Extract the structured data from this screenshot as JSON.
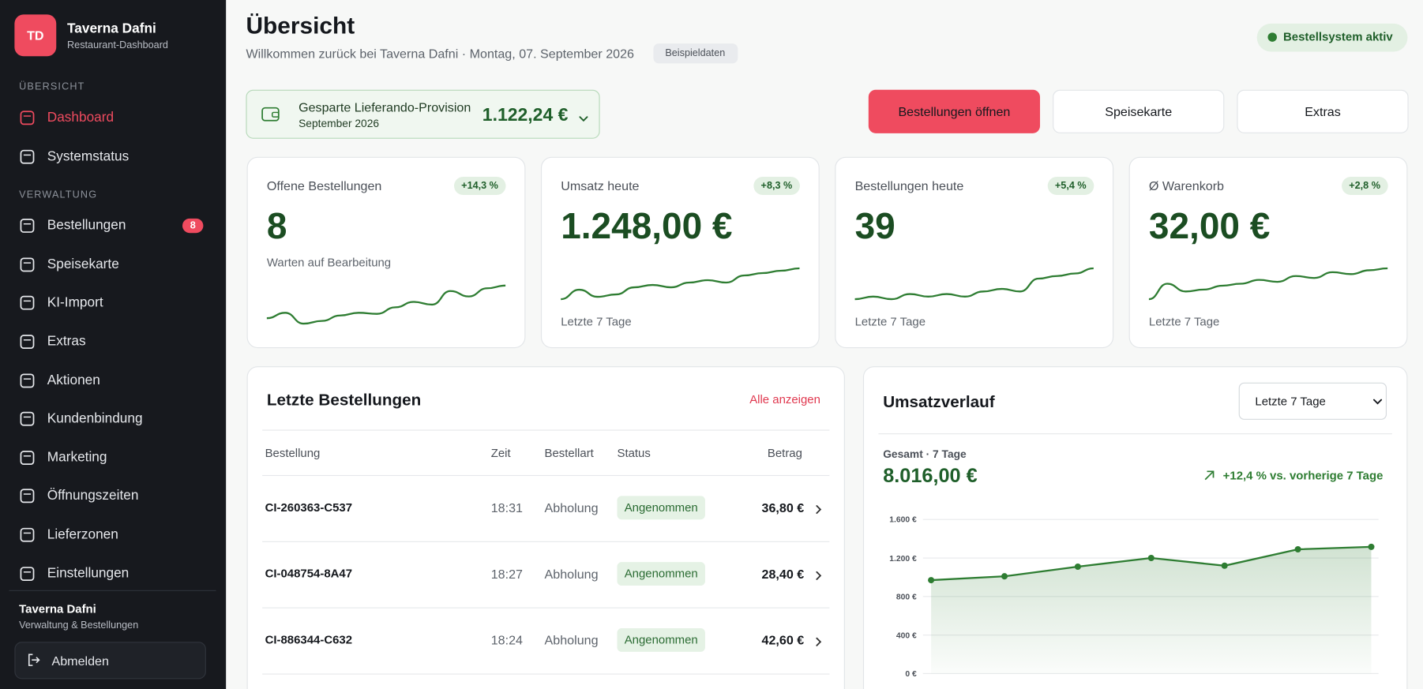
{
  "sidebar": {
    "logo": "TD",
    "name": "Taverna Dafni",
    "subtitle": "Restaurant-Dashboard",
    "sections": [
      {
        "heading": "ÜBERSICHT",
        "items": [
          {
            "label": "Dashboard"
          },
          {
            "label": "Systemstatus"
          }
        ]
      },
      {
        "heading": "VERWALTUNG",
        "items": [
          {
            "label": "Bestellungen",
            "badge": 8
          },
          {
            "label": "Speisekarte"
          },
          {
            "label": "KI-Import"
          },
          {
            "label": "Extras"
          },
          {
            "label": "Aktionen"
          },
          {
            "label": "Kundenbindung"
          },
          {
            "label": "Marketing"
          },
          {
            "label": "Öffnungszeiten"
          },
          {
            "label": "Lieferzonen"
          },
          {
            "label": "Einstellungen"
          }
        ]
      }
    ],
    "footer": {
      "name": "Taverna Dafni",
      "subtitle": "Verwaltung & Bestellungen"
    },
    "logout": "Abmelden"
  },
  "header": {
    "title": "Übersicht",
    "subtitle": "Willkommen zurück bei Taverna Dafni · Montag, 07. September 2026",
    "sample_badge": "Beispieldaten",
    "status": "Bestellsystem aktiv"
  },
  "savings": {
    "label": "Gesparte Lieferando-Provision",
    "period": "September 2026",
    "amount": "1.122,24 €"
  },
  "actions": [
    "Bestellungen öffnen",
    "Speisekarte",
    "Extras"
  ],
  "kpis": [
    {
      "title": "Offene Bestellungen",
      "change": "+14,3 %",
      "value": "8",
      "note": "Warten auf Bearbeitung",
      "sparkline": [
        2,
        3,
        1,
        1.5,
        2.5,
        3,
        2.8,
        4,
        5,
        4.5,
        7,
        6,
        7.5,
        8
      ]
    },
    {
      "title": "Umsatz heute",
      "change": "+8,3 %",
      "value": "1.248,00 €",
      "note": "Letzte 7 Tage",
      "sparkline": [
        2,
        4,
        2.5,
        3,
        4.5,
        5,
        4.5,
        5.5,
        6,
        5.5,
        7,
        7.5,
        8,
        8.5
      ]
    },
    {
      "title": "Bestellungen heute",
      "change": "+5,4 %",
      "value": "39",
      "note": "Letzte 7 Tage",
      "sparkline": [
        1,
        1.5,
        1,
        2,
        1.5,
        2,
        1.5,
        2.5,
        3,
        2.5,
        5,
        5.5,
        6,
        7
      ]
    },
    {
      "title": "Ø Warenkorb",
      "change": "+2,8 %",
      "value": "32,00 €",
      "note": "Letzte 7 Tage",
      "sparkline": [
        1,
        5,
        3,
        3.5,
        4.5,
        5,
        6,
        5.5,
        7,
        6.5,
        8,
        7.5,
        8.5,
        9
      ]
    }
  ],
  "orders": {
    "title": "Letzte Bestellungen",
    "link": "Alle anzeigen",
    "columns": [
      "Bestellung",
      "Zeit",
      "Bestellart",
      "Status",
      "Betrag"
    ],
    "rows": [
      [
        "CI-260363-C537",
        "18:31",
        "Abholung",
        "Angenommen",
        "36,80 €"
      ],
      [
        "CI-048754-8A47",
        "18:27",
        "Abholung",
        "Angenommen",
        "28,40 €"
      ],
      [
        "CI-886344-C632",
        "18:24",
        "Abholung",
        "Angenommen",
        "42,60 €"
      ]
    ]
  },
  "revenue_chart": {
    "type": "line",
    "title": "Umsatzverlauf",
    "range_select": "Letzte 7 Tage",
    "total_label": "Gesamt · 7 Tage",
    "total": "8.016,00 €",
    "change": "+12,4 % vs. vorherige 7 Tage",
    "values": [
      970,
      1010,
      1110,
      1200,
      1120,
      1290,
      1316
    ],
    "color": "#2e7d32",
    "ylim": [
      0,
      1600
    ],
    "yticks": [
      {
        "value": 0,
        "label": "0 €"
      },
      {
        "value": 400,
        "label": "400 €"
      },
      {
        "value": 800,
        "label": "800 €"
      },
      {
        "value": 1200,
        "label": "1.200 €"
      },
      {
        "value": 1600,
        "label": "1.600 €"
      }
    ],
    "grid": true
  }
}
